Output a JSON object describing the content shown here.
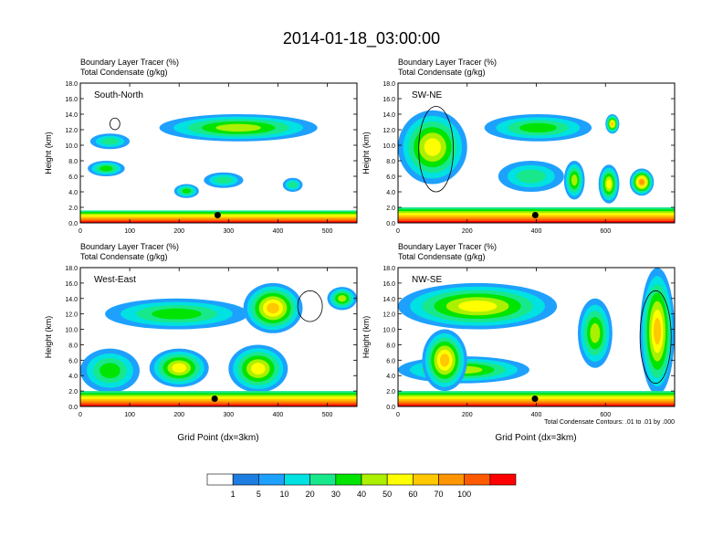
{
  "page_title": "2014-01-18_03:00:00",
  "panel_label_line1": "Boundary Layer Tracer   (%)",
  "panel_label_line2": "Total Condensate   (g/kg)",
  "ylabel": "Height (km)",
  "xlabel": "Grid Point (dx=3km)",
  "contour_note": "Total Condensate Contours: .01 to .01 by .000",
  "colorbar": {
    "levels": [
      "1",
      "5",
      "10",
      "20",
      "30",
      "40",
      "50",
      "60",
      "70",
      "100"
    ],
    "colors": [
      "#ffffff",
      "#1e7de0",
      "#1ea0ff",
      "#00e1e1",
      "#18e88c",
      "#00e400",
      "#aaf000",
      "#ffff00",
      "#ffc800",
      "#ff9600",
      "#ff5a00",
      "#ff0000"
    ]
  },
  "chart_data": [
    {
      "type": "heatmap",
      "title": "South-North",
      "ylabel": "Height (km)",
      "yticks": [
        "0.0",
        "2.0",
        "4.0",
        "6.0",
        "8.0",
        "10.0",
        "12.0",
        "14.0",
        "16.0",
        "18.0"
      ],
      "ylim": [
        0,
        18
      ],
      "xticks": [
        0,
        100,
        200,
        300,
        400,
        500
      ],
      "xlim": [
        0,
        560
      ],
      "marker": {
        "x": 278,
        "y": 1.0
      },
      "features": [
        {
          "kind": "surface_layer",
          "x": [
            0,
            560
          ],
          "top_km": 1.6
        },
        {
          "kind": "plume",
          "x": [
            160,
            480
          ],
          "y": [
            10.5,
            14.0
          ],
          "value": 30
        },
        {
          "kind": "plume",
          "x": [
            15,
            90
          ],
          "y": [
            6.0,
            8.0
          ],
          "value": 20
        },
        {
          "kind": "plume",
          "x": [
            20,
            100
          ],
          "y": [
            9.5,
            11.5
          ],
          "value": 10
        },
        {
          "kind": "plume",
          "x": [
            190,
            240
          ],
          "y": [
            3.2,
            5.0
          ],
          "value": 20
        },
        {
          "kind": "plume",
          "x": [
            250,
            330
          ],
          "y": [
            4.5,
            6.5
          ],
          "value": 10
        },
        {
          "kind": "plume",
          "x": [
            410,
            450
          ],
          "y": [
            4.0,
            5.8
          ],
          "value": 10
        },
        {
          "kind": "cloud_contour",
          "x": [
            60,
            80
          ],
          "y": [
            12.0,
            13.5
          ]
        }
      ]
    },
    {
      "type": "heatmap",
      "title": "SW-NE",
      "ylabel": "Height (km)",
      "yticks": [
        "0.0",
        "2.0",
        "4.0",
        "6.0",
        "8.0",
        "10.0",
        "12.0",
        "14.0",
        "16.0",
        "18.0"
      ],
      "ylim": [
        0,
        18
      ],
      "xticks": [
        0,
        200,
        400,
        600
      ],
      "xlim": [
        0,
        800
      ],
      "marker": {
        "x": 397,
        "y": 1.0
      },
      "features": [
        {
          "kind": "surface_layer",
          "x": [
            0,
            800
          ],
          "top_km": 2.0
        },
        {
          "kind": "plume",
          "x": [
            0,
            200
          ],
          "y": [
            5.0,
            14.5
          ],
          "value": 40
        },
        {
          "kind": "plume",
          "x": [
            250,
            560
          ],
          "y": [
            10.5,
            14.0
          ],
          "value": 20
        },
        {
          "kind": "plume",
          "x": [
            600,
            640
          ],
          "y": [
            11.5,
            14.0
          ],
          "value": 50
        },
        {
          "kind": "plume",
          "x": [
            480,
            540
          ],
          "y": [
            3.0,
            8.0
          ],
          "value": 30
        },
        {
          "kind": "plume",
          "x": [
            580,
            640
          ],
          "y": [
            2.5,
            7.5
          ],
          "value": 40
        },
        {
          "kind": "plume",
          "x": [
            670,
            740
          ],
          "y": [
            3.5,
            7.0
          ],
          "value": 60
        },
        {
          "kind": "plume",
          "x": [
            290,
            480
          ],
          "y": [
            4.0,
            8.0
          ],
          "value": 10
        },
        {
          "kind": "cloud_contour",
          "x": [
            60,
            160
          ],
          "y": [
            4.0,
            15.0
          ]
        }
      ]
    },
    {
      "type": "heatmap",
      "title": "West-East",
      "ylabel": "Height (km)",
      "yticks": [
        "0.0",
        "2.0",
        "4.0",
        "6.0",
        "8.0",
        "10.0",
        "12.0",
        "14.0",
        "16.0",
        "18.0"
      ],
      "ylim": [
        0,
        18
      ],
      "xticks": [
        0,
        100,
        200,
        300,
        400,
        500
      ],
      "xlim": [
        0,
        560
      ],
      "marker": {
        "x": 272,
        "y": 1.0
      },
      "features": [
        {
          "kind": "surface_layer",
          "x": [
            0,
            560
          ],
          "top_km": 2.0
        },
        {
          "kind": "plume",
          "x": [
            50,
            340
          ],
          "y": [
            10.0,
            14.0
          ],
          "value": 20
        },
        {
          "kind": "plume",
          "x": [
            330,
            450
          ],
          "y": [
            9.5,
            16.0
          ],
          "value": 50
        },
        {
          "kind": "plume",
          "x": [
            0,
            120
          ],
          "y": [
            1.8,
            7.5
          ],
          "value": 20
        },
        {
          "kind": "plume",
          "x": [
            140,
            260
          ],
          "y": [
            2.5,
            7.5
          ],
          "value": 40
        },
        {
          "kind": "plume",
          "x": [
            300,
            420
          ],
          "y": [
            1.8,
            8.0
          ],
          "value": 40
        },
        {
          "kind": "plume",
          "x": [
            500,
            560
          ],
          "y": [
            12.5,
            15.5
          ],
          "value": 30
        },
        {
          "kind": "cloud_contour",
          "x": [
            440,
            490
          ],
          "y": [
            11.0,
            15.0
          ]
        }
      ]
    },
    {
      "type": "heatmap",
      "title": "NW-SE",
      "ylabel": "Height (km)",
      "yticks": [
        "0.0",
        "2.0",
        "4.0",
        "6.0",
        "8.0",
        "10.0",
        "12.0",
        "14.0",
        "16.0",
        "18.0"
      ],
      "ylim": [
        0,
        18
      ],
      "xticks": [
        0,
        200,
        400,
        600
      ],
      "xlim": [
        0,
        800
      ],
      "marker": {
        "x": 396,
        "y": 1.0
      },
      "features": [
        {
          "kind": "surface_layer",
          "x": [
            0,
            800
          ],
          "top_km": 2.0
        },
        {
          "kind": "plume",
          "x": [
            0,
            460
          ],
          "y": [
            10.0,
            16.0
          ],
          "value": 40
        },
        {
          "kind": "plume",
          "x": [
            0,
            380
          ],
          "y": [
            3.0,
            6.5
          ],
          "value": 30
        },
        {
          "kind": "plume",
          "x": [
            70,
            200
          ],
          "y": [
            2.0,
            10.0
          ],
          "value": 50
        },
        {
          "kind": "plume",
          "x": [
            520,
            620
          ],
          "y": [
            5.0,
            14.0
          ],
          "value": 30
        },
        {
          "kind": "plume",
          "x": [
            700,
            800
          ],
          "y": [
            1.5,
            18.0
          ],
          "value": 50
        },
        {
          "kind": "cloud_contour",
          "x": [
            700,
            790
          ],
          "y": [
            3.0,
            15.0
          ]
        }
      ]
    }
  ]
}
